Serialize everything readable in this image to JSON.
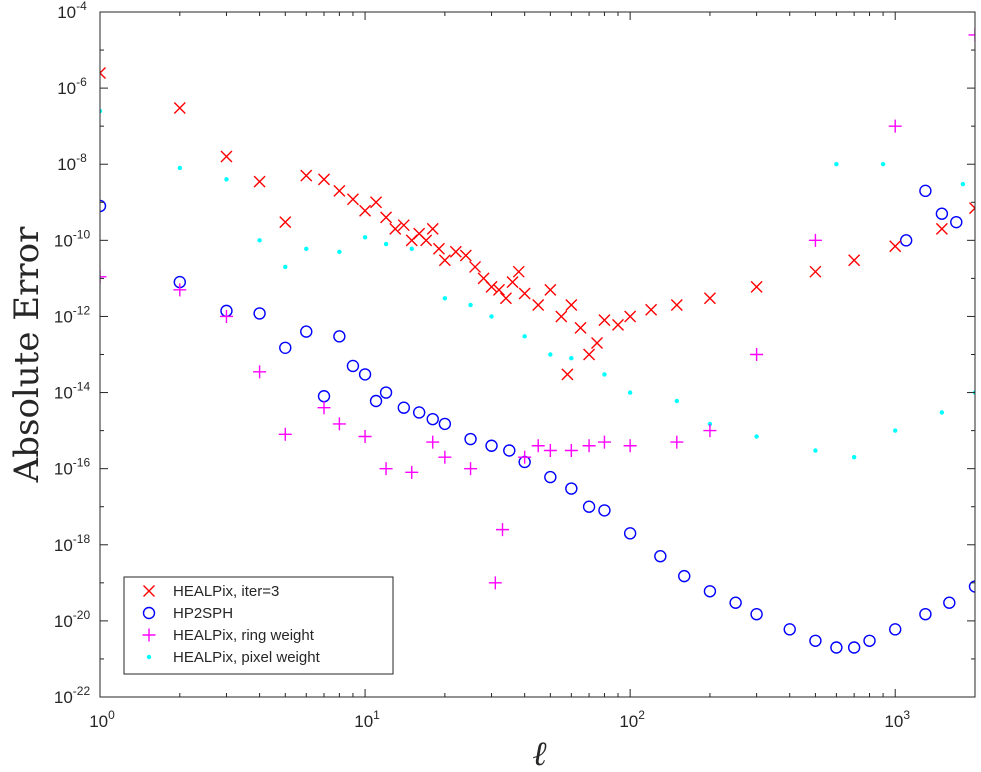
{
  "chart_data": {
    "type": "scatter",
    "xlabel": "ℓ",
    "ylabel": "Absolute Error",
    "xscale": "log",
    "yscale": "log",
    "xlim": [
      1,
      2000
    ],
    "ylim": [
      1e-22,
      0.0001
    ],
    "x_ticks": [
      {
        "base": "10",
        "exp": "0"
      },
      {
        "base": "10",
        "exp": "1"
      },
      {
        "base": "10",
        "exp": "2"
      },
      {
        "base": "10",
        "exp": "3"
      }
    ],
    "y_ticks": [
      {
        "base": "10",
        "exp": "-22"
      },
      {
        "base": "10",
        "exp": "-20"
      },
      {
        "base": "10",
        "exp": "-18"
      },
      {
        "base": "10",
        "exp": "-16"
      },
      {
        "base": "10",
        "exp": "-14"
      },
      {
        "base": "10",
        "exp": "-12"
      },
      {
        "base": "10",
        "exp": "-10"
      },
      {
        "base": "10",
        "exp": "-8"
      },
      {
        "base": "10",
        "exp": "-6"
      },
      {
        "base": "10",
        "exp": "-4"
      }
    ],
    "grid": false,
    "legend_position": "bottom-left",
    "series": [
      {
        "name": "HEALPix, iter=3",
        "marker": "x",
        "color": "#ff0000",
        "points": [
          [
            1,
            2.5e-06
          ],
          [
            2,
            3e-07
          ],
          [
            3,
            1.6e-08
          ],
          [
            4,
            3.5e-09
          ],
          [
            5,
            3e-10
          ],
          [
            6,
            5e-09
          ],
          [
            7,
            4e-09
          ],
          [
            8,
            2e-09
          ],
          [
            9,
            1.2e-09
          ],
          [
            10,
            6e-10
          ],
          [
            11,
            1e-09
          ],
          [
            12,
            4e-10
          ],
          [
            13,
            2e-10
          ],
          [
            14,
            2.5e-10
          ],
          [
            15,
            1e-10
          ],
          [
            16,
            1.5e-10
          ],
          [
            17,
            1e-10
          ],
          [
            18,
            2e-10
          ],
          [
            19,
            6e-11
          ],
          [
            20,
            3e-11
          ],
          [
            22,
            5e-11
          ],
          [
            24,
            4e-11
          ],
          [
            26,
            2e-11
          ],
          [
            28,
            1e-11
          ],
          [
            30,
            6e-12
          ],
          [
            32,
            5e-12
          ],
          [
            34,
            3e-12
          ],
          [
            36,
            8e-12
          ],
          [
            38,
            1.5e-11
          ],
          [
            40,
            4e-12
          ],
          [
            45,
            2e-12
          ],
          [
            50,
            5e-12
          ],
          [
            55,
            1e-12
          ],
          [
            58,
            3e-14
          ],
          [
            60,
            2e-12
          ],
          [
            65,
            5e-13
          ],
          [
            70,
            1e-13
          ],
          [
            75,
            2e-13
          ],
          [
            80,
            8e-13
          ],
          [
            90,
            6e-13
          ],
          [
            100,
            1e-12
          ],
          [
            120,
            1.5e-12
          ],
          [
            150,
            2e-12
          ],
          [
            200,
            3e-12
          ],
          [
            300,
            6e-12
          ],
          [
            500,
            1.5e-11
          ],
          [
            700,
            3e-11
          ],
          [
            1000,
            7e-11
          ],
          [
            1500,
            2e-10
          ],
          [
            2000,
            7e-10
          ]
        ]
      },
      {
        "name": "HP2SPH",
        "marker": "o",
        "color": "#0000ff",
        "points": [
          [
            1,
            8e-10
          ],
          [
            2,
            8e-12
          ],
          [
            3,
            1.4e-12
          ],
          [
            4,
            1.2e-12
          ],
          [
            5,
            1.5e-13
          ],
          [
            6,
            4e-13
          ],
          [
            7,
            8e-15
          ],
          [
            8,
            3e-13
          ],
          [
            9,
            5e-14
          ],
          [
            10,
            3e-14
          ],
          [
            11,
            6e-15
          ],
          [
            12,
            1e-14
          ],
          [
            14,
            4e-15
          ],
          [
            16,
            3e-15
          ],
          [
            18,
            2e-15
          ],
          [
            20,
            1.5e-15
          ],
          [
            25,
            6e-16
          ],
          [
            30,
            4e-16
          ],
          [
            35,
            3e-16
          ],
          [
            40,
            1.5e-16
          ],
          [
            50,
            6e-17
          ],
          [
            60,
            3e-17
          ],
          [
            70,
            1e-17
          ],
          [
            80,
            8e-18
          ],
          [
            100,
            2e-18
          ],
          [
            130,
            5e-19
          ],
          [
            160,
            1.5e-19
          ],
          [
            200,
            6e-20
          ],
          [
            250,
            3e-20
          ],
          [
            300,
            1.5e-20
          ],
          [
            400,
            6e-21
          ],
          [
            500,
            3e-21
          ],
          [
            600,
            2e-21
          ],
          [
            700,
            2e-21
          ],
          [
            800,
            3e-21
          ],
          [
            1000,
            6e-21
          ],
          [
            1300,
            1.5e-20
          ],
          [
            1600,
            3e-20
          ],
          [
            2000,
            8e-20
          ],
          [
            1100,
            1e-10
          ],
          [
            1300,
            2e-09
          ],
          [
            1500,
            5e-10
          ],
          [
            1700,
            3e-10
          ]
        ]
      },
      {
        "name": "HEALPix, ring weight",
        "marker": "+",
        "color": "#ff00ff",
        "points": [
          [
            1,
            1.1e-11
          ],
          [
            2,
            5e-12
          ],
          [
            3,
            1e-12
          ],
          [
            4,
            3.5e-14
          ],
          [
            5,
            8e-16
          ],
          [
            7,
            4e-15
          ],
          [
            8,
            1.5e-15
          ],
          [
            10,
            7e-16
          ],
          [
            12,
            1e-16
          ],
          [
            15,
            8e-17
          ],
          [
            18,
            5e-16
          ],
          [
            20,
            2e-16
          ],
          [
            25,
            1e-16
          ],
          [
            31,
            1e-19
          ],
          [
            33,
            2.5e-18
          ],
          [
            40,
            2e-16
          ],
          [
            45,
            4e-16
          ],
          [
            50,
            3e-16
          ],
          [
            60,
            3e-16
          ],
          [
            70,
            4e-16
          ],
          [
            80,
            5e-16
          ],
          [
            100,
            4e-16
          ],
          [
            150,
            5e-16
          ],
          [
            200,
            1e-15
          ],
          [
            300,
            1e-13
          ],
          [
            500,
            1e-10
          ],
          [
            1000,
            1e-07
          ],
          [
            2000,
            2.5e-05
          ]
        ]
      },
      {
        "name": "HEALPix, pixel weight",
        "marker": ".",
        "color": "#00ffff",
        "points": [
          [
            1,
            2.5e-07
          ],
          [
            2,
            8e-09
          ],
          [
            3,
            4e-09
          ],
          [
            4,
            1e-10
          ],
          [
            5,
            2e-11
          ],
          [
            6,
            6e-11
          ],
          [
            8,
            5e-11
          ],
          [
            10,
            1.2e-10
          ],
          [
            12,
            8e-11
          ],
          [
            15,
            6e-11
          ],
          [
            20,
            3e-12
          ],
          [
            25,
            2e-12
          ],
          [
            30,
            1e-12
          ],
          [
            40,
            3e-13
          ],
          [
            50,
            1e-13
          ],
          [
            60,
            8e-14
          ],
          [
            80,
            3e-14
          ],
          [
            100,
            1e-14
          ],
          [
            150,
            6e-15
          ],
          [
            200,
            1.5e-15
          ],
          [
            300,
            7e-16
          ],
          [
            500,
            3e-16
          ],
          [
            700,
            2e-16
          ],
          [
            1000,
            1e-15
          ],
          [
            1500,
            3e-15
          ],
          [
            2000,
            1e-14
          ],
          [
            600,
            1e-08
          ],
          [
            900,
            1e-08
          ],
          [
            1800,
            3e-09
          ]
        ]
      }
    ]
  }
}
